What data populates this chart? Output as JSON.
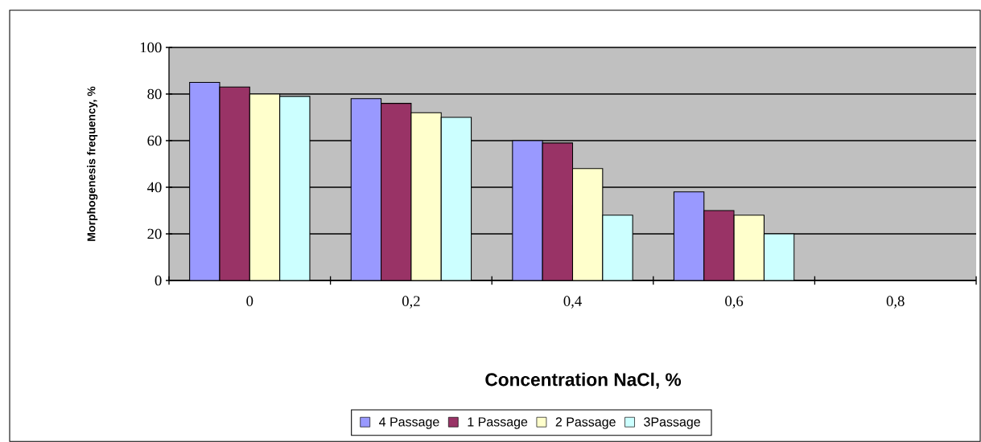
{
  "chart_data": {
    "type": "bar",
    "xlabel": "Concentration NaCl, %",
    "ylabel": "Morphogenesis frequency, %",
    "categories": [
      "0",
      "0,2",
      "0,4",
      "0,6",
      "0,8"
    ],
    "series": [
      {
        "name": "4 Passage",
        "color": "#9999ff",
        "values": [
          85,
          78,
          60,
          38,
          null
        ]
      },
      {
        "name": "1 Passage",
        "color": "#993366",
        "values": [
          83,
          76,
          59,
          30,
          null
        ]
      },
      {
        "name": "2 Passage",
        "color": "#ffffcc",
        "values": [
          80,
          72,
          48,
          28,
          null
        ]
      },
      {
        "name": "3Passage",
        "color": "#ccffff",
        "values": [
          79,
          70,
          28,
          20,
          null
        ]
      }
    ],
    "ylim": [
      0,
      100
    ],
    "yticks": [
      0,
      20,
      40,
      60,
      80,
      100
    ],
    "grid": "y",
    "legend": "bottom"
  }
}
